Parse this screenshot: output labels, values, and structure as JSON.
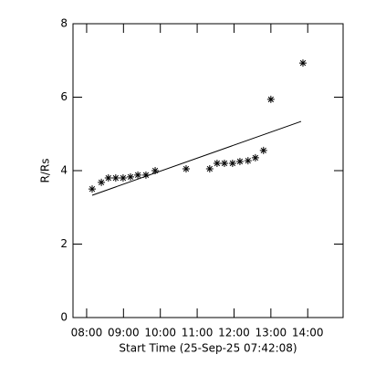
{
  "chart_data": {
    "type": "scatter",
    "xlabel": "Start Time (25-Sep-25 07:42:08)",
    "ylabel": "R/Rs",
    "xlim": [
      7.63,
      14.96
    ],
    "ylim": [
      0,
      8
    ],
    "xticks": [
      {
        "value": 8,
        "label": "08:00"
      },
      {
        "value": 9,
        "label": "09:00"
      },
      {
        "value": 10,
        "label": "10:00"
      },
      {
        "value": 11,
        "label": "11:00"
      },
      {
        "value": 12,
        "label": "12:00"
      },
      {
        "value": 13,
        "label": "13:00"
      },
      {
        "value": 14,
        "label": "14:00"
      }
    ],
    "yticks": [
      0,
      2,
      4,
      6,
      8
    ],
    "color": "#000000",
    "points": {
      "x": [
        8.15,
        8.4,
        8.59,
        8.79,
        8.99,
        9.19,
        9.39,
        9.61,
        9.86,
        10.7,
        11.34,
        11.54,
        11.74,
        11.96,
        12.16,
        12.38,
        12.58,
        12.8,
        13.0,
        13.87
      ],
      "y": [
        3.5,
        3.68,
        3.8,
        3.8,
        3.8,
        3.83,
        3.88,
        3.88,
        4.0,
        4.05,
        4.05,
        4.2,
        4.2,
        4.2,
        4.25,
        4.27,
        4.35,
        4.55,
        5.94,
        6.93
      ]
    },
    "fit": {
      "x": [
        8.15,
        13.82
      ],
      "y": [
        3.33,
        5.34
      ]
    }
  }
}
